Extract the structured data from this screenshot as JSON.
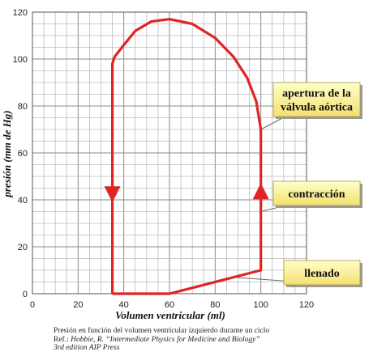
{
  "chart_data": {
    "type": "line",
    "xlabel": "Volumen ventricular (ml)",
    "ylabel": "presión (mm de Hg)",
    "xlim": [
      0,
      120
    ],
    "ylim": [
      0,
      120
    ],
    "x_ticks": [
      "0",
      "20",
      "40",
      "60",
      "80",
      "100",
      "120"
    ],
    "y_ticks": [
      "0",
      "20",
      "40",
      "60",
      "80",
      "100",
      "120"
    ],
    "grid": true,
    "series": [
      {
        "color": "#e02424",
        "points": [
          [
            35,
            0
          ],
          [
            60,
            0
          ],
          [
            100,
            10
          ],
          [
            100,
            70
          ],
          [
            98,
            82
          ],
          [
            94,
            92
          ],
          [
            88,
            101
          ],
          [
            80,
            109
          ],
          [
            70,
            115
          ],
          [
            60,
            117
          ],
          [
            52,
            116
          ],
          [
            45,
            112
          ],
          [
            40,
            106
          ],
          [
            36,
            101
          ],
          [
            35,
            98
          ],
          [
            35,
            0
          ]
        ]
      }
    ],
    "arrows": [
      {
        "x": 35,
        "y": 43,
        "direction": "down"
      },
      {
        "x": 100,
        "y": 43,
        "direction": "up"
      }
    ],
    "annotations": [
      {
        "lines": [
          "apertura de la",
          "válvula aórtica"
        ],
        "target": [
          100,
          70
        ]
      },
      {
        "lines": [
          "contracción"
        ],
        "target": [
          100,
          35
        ]
      },
      {
        "lines": [
          "llenado"
        ],
        "target": [
          88,
          7
        ]
      }
    ]
  },
  "caption": {
    "line1": "Presión en función del volumen ventricular izquierdo durante un ciclo",
    "ref_prefix": "Ref.: ",
    "ref_text": "Hobbie, R. “Intermediate Physics for Medicine and Biology”",
    "line3": "3rd edition AIP Press"
  }
}
